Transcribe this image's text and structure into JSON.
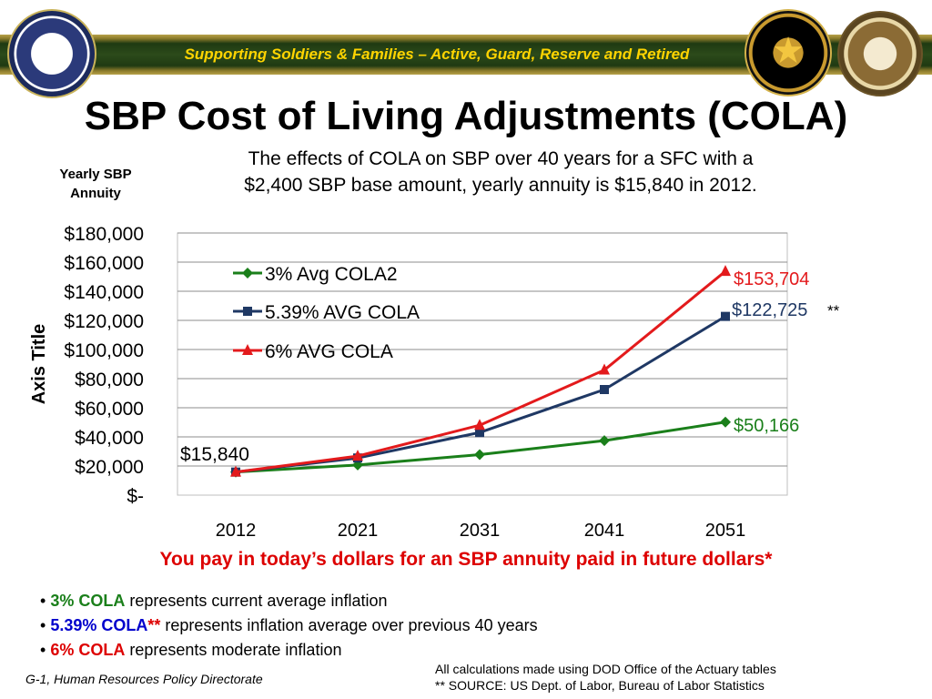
{
  "banner": {
    "text": "Supporting Soldiers & Families – Active, Guard, Reserve and Retired"
  },
  "title": "SBP Cost of Living Adjustments (COLA)",
  "subtitle_line1": "The effects of COLA on SBP over 40 years for a SFC with a",
  "subtitle_line2": "$2,400 SBP base amount,  yearly annuity is $15,840 in 2012.",
  "yearly_label_line1": "Yearly SBP",
  "yearly_label_line2": "Annuity",
  "tagline": "You pay in today’s dollars for an SBP annuity paid in future dollars*",
  "bullets": [
    {
      "lead": "3% COLA",
      "text": " represents current average inflation"
    },
    {
      "lead": "5.39% COLA",
      "mark": "**",
      "text": "  represents inflation average over previous 40 years"
    },
    {
      "lead": "6% COLA",
      "text": " represents moderate inflation"
    }
  ],
  "footer_left": "G-1, Human Resources Policy Directorate",
  "footer_right_line1": "All calculations made using DOD Office of the Actuary tables",
  "footer_right_line2": "** SOURCE: US Dept. of Labor, Bureau of Labor Statistics",
  "colors": {
    "green": "#1a7f1a",
    "navy": "#1f3864",
    "red": "#e31a1c",
    "banner_text": "#ffd400"
  },
  "icons": [
    "army-seal-icon",
    "g1-seal-icon",
    "dod-seal-icon"
  ],
  "chart_data": {
    "type": "line",
    "categories": [
      "2012",
      "2021",
      "2031",
      "2041",
      "2051"
    ],
    "ylabel": "Axis Title",
    "ylim": [
      0,
      180000
    ],
    "yticks": [
      0,
      20000,
      40000,
      60000,
      80000,
      100000,
      120000,
      140000,
      160000,
      180000
    ],
    "ytick_labels": [
      "$-",
      "$20,000",
      "$40,000",
      "$60,000",
      "$80,000",
      "$100,000",
      "$120,000",
      "$140,000",
      "$160,000",
      "$180,000"
    ],
    "grid": "horizontal",
    "legend_position": "top-left",
    "series": [
      {
        "name": "3% Avg COLA2",
        "color": "#1a7f1a",
        "marker": "diamond",
        "values": [
          15840,
          20700,
          27800,
          37400,
          50166
        ]
      },
      {
        "name": "5.39% AVG COLA",
        "color": "#1f3864",
        "marker": "square",
        "values": [
          15840,
          25500,
          43000,
          72500,
          122725
        ]
      },
      {
        "name": "6% AVG COLA",
        "color": "#e31a1c",
        "marker": "triangle",
        "values": [
          15840,
          26800,
          48000,
          85900,
          153704
        ]
      }
    ],
    "annotations": [
      {
        "text": "$15,840",
        "color": "#000000"
      },
      {
        "text": "$153,704",
        "color": "#e31a1c"
      },
      {
        "text": "$122,725",
        "suffix": "**",
        "color": "#1f3864"
      },
      {
        "text": "$50,166",
        "color": "#1a7f1a"
      }
    ]
  }
}
